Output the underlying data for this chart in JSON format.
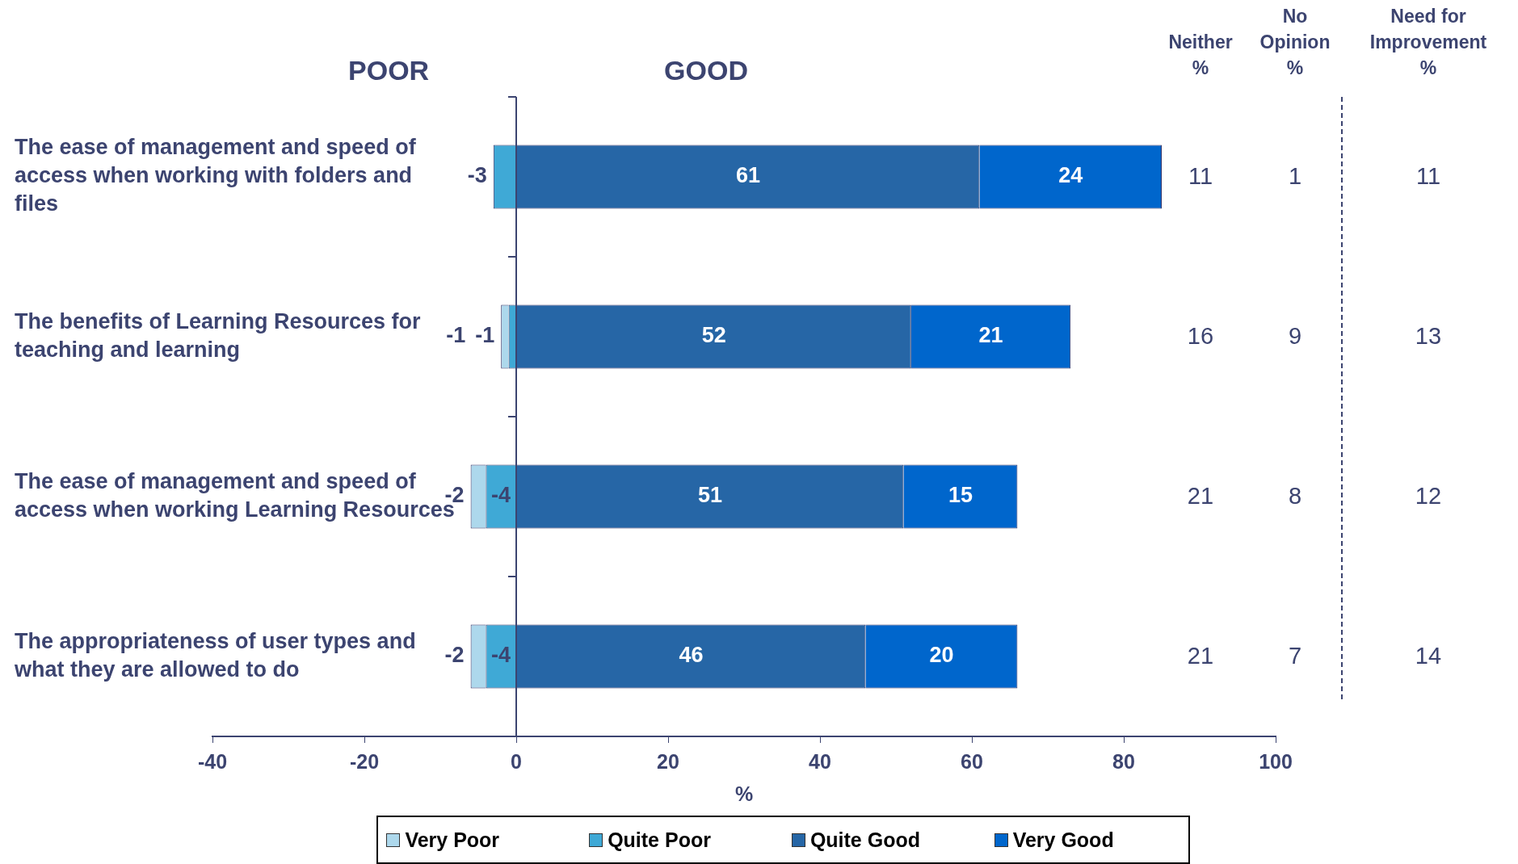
{
  "chart_data": [
    {
      "type": "bar",
      "orientation": "horizontal",
      "stacked": true,
      "xlabel": "%",
      "categories": [
        "The ease of management and speed of access when working with folders and files",
        "The benefits of Learning Resources for teaching and learning",
        "The ease of management and speed of access when working Learning Resources",
        "The appropriateness of user types and what they are allowed to do"
      ],
      "series": [
        {
          "name": "Very Poor",
          "color": "#add8ec",
          "values": [
            null,
            -1,
            -2,
            -2
          ]
        },
        {
          "name": "Quite Poor",
          "color": "#3fa9d6",
          "values": [
            -3,
            -1,
            -4,
            -4
          ]
        },
        {
          "name": "Quite Good",
          "color": "#2666a6",
          "values": [
            61,
            52,
            51,
            46
          ]
        },
        {
          "name": "Very Good",
          "color": "#0066cc",
          "values": [
            24,
            21,
            15,
            20
          ]
        }
      ],
      "xlim": [
        -40,
        100
      ],
      "xticks": [
        -40,
        -20,
        0,
        20,
        40,
        60,
        80,
        100
      ],
      "grid": false,
      "legend": "bottom",
      "data_labels": true,
      "ref_lines": [
        {
          "axis": "x",
          "value": 0,
          "color": "#3c4470"
        }
      ],
      "annotations": [
        "POOR",
        "GOOD"
      ]
    },
    {
      "type": "other",
      "annotations": [
        "Neither %",
        "No Opinion %",
        "Need for Improvement %",
        "11",
        "1",
        "11",
        "16",
        "9",
        "13",
        "21",
        "8",
        "12",
        "21",
        "7",
        "14"
      ]
    }
  ]
}
